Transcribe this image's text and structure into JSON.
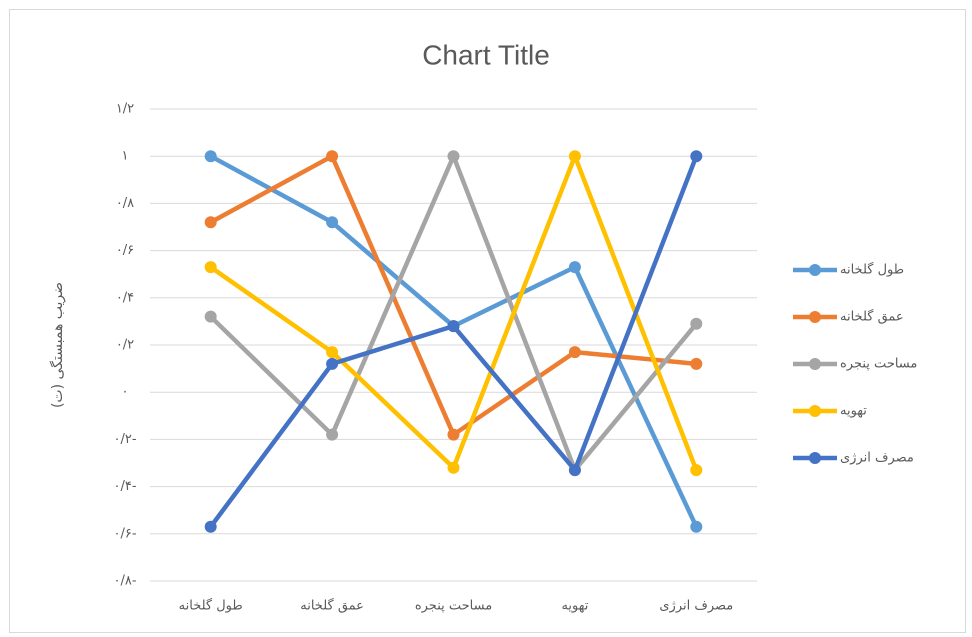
{
  "chart_data": {
    "type": "line",
    "title": "Chart Title",
    "y_label": "ضریب همبستگی (ت)",
    "categories": [
      "طول گلخانه",
      "عمق گلخانه",
      "مساحت پنجره",
      "تهویه",
      "مصرف انرژی"
    ],
    "series": [
      {
        "name": "طول گلخانه",
        "color": "#5b9bd5",
        "values": [
          1,
          0.72,
          0.28,
          0.53,
          -0.57
        ]
      },
      {
        "name": "عمق گلخانه",
        "color": "#ed7d31",
        "values": [
          0.72,
          1,
          -0.18,
          0.17,
          0.12
        ]
      },
      {
        "name": "مساحت پنجره",
        "color": "#a5a5a5",
        "values": [
          0.32,
          -0.18,
          1,
          -0.33,
          0.29
        ]
      },
      {
        "name": "تهویه",
        "color": "#ffc000",
        "values": [
          0.53,
          0.17,
          -0.32,
          1,
          -0.33
        ]
      },
      {
        "name": "مصرف انرژی",
        "color": "#4472c4",
        "values": [
          -0.57,
          0.12,
          0.28,
          -0.33,
          1
        ]
      }
    ],
    "ylim": [
      -0.8,
      1.2
    ],
    "yticks": [
      {
        "value": -0.8,
        "label": "۰/۸-"
      },
      {
        "value": -0.6,
        "label": "۰/۶-"
      },
      {
        "value": -0.4,
        "label": "۰/۴-"
      },
      {
        "value": -0.2,
        "label": "۰/۲-"
      },
      {
        "value": 0,
        "label": "۰"
      },
      {
        "value": 0.2,
        "label": "۰/۲"
      },
      {
        "value": 0.4,
        "label": "۰/۴"
      },
      {
        "value": 0.6,
        "label": "۰/۶"
      },
      {
        "value": 0.8,
        "label": "۰/۸"
      },
      {
        "value": 1,
        "label": "۱"
      },
      {
        "value": 1.2,
        "label": "۱/۲"
      }
    ],
    "grid": true,
    "legend": "right"
  }
}
